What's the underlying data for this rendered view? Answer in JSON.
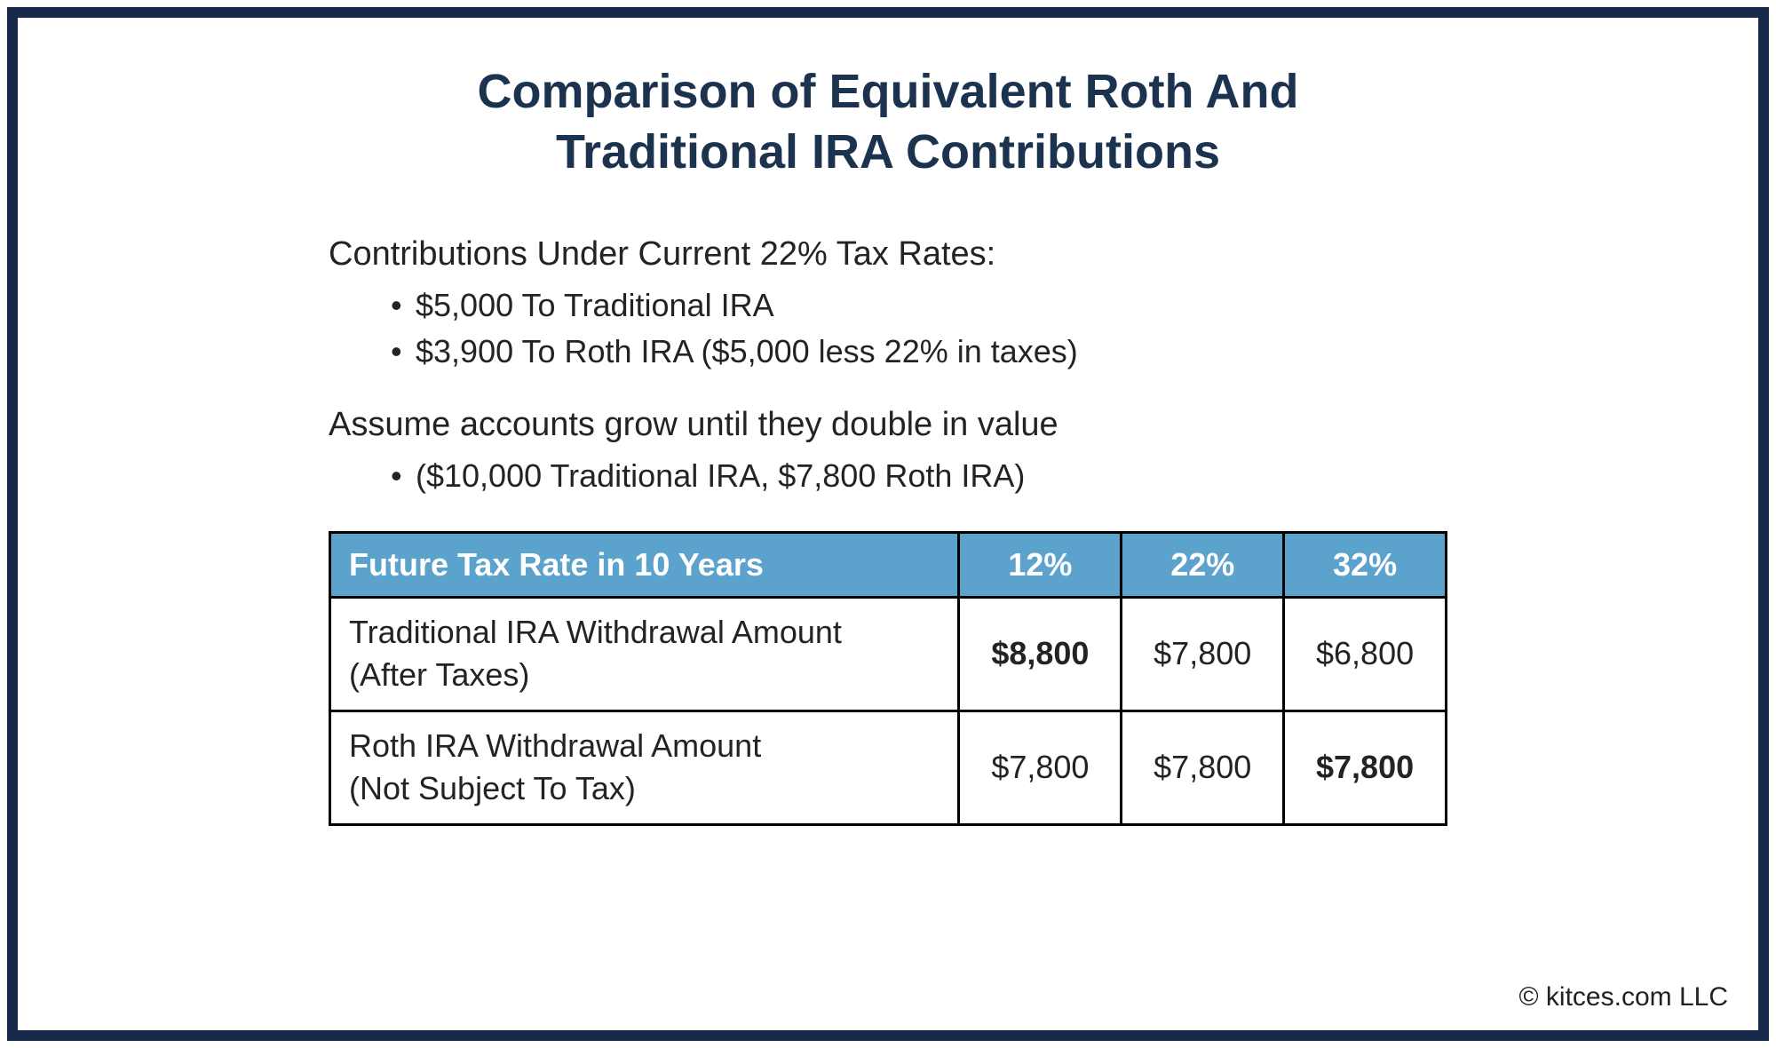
{
  "colors": {
    "frame_border": "#16294a",
    "title_color": "#1c3350",
    "body_text": "#232323",
    "table_border": "#000000",
    "table_header_bg": "#5ba2cd",
    "table_header_text": "#ffffff",
    "highlight_green": "#7ba23f",
    "background": "#ffffff"
  },
  "typography": {
    "title_fontsize": 54,
    "title_weight": 700,
    "heading_fontsize": 38,
    "bullet_fontsize": 36,
    "table_fontsize": 36,
    "copyright_fontsize": 30
  },
  "title": {
    "line1": "Comparison of Equivalent Roth And",
    "line2": "Traditional IRA Contributions"
  },
  "section1": {
    "heading": "Contributions Under Current 22% Tax Rates:",
    "bullets": [
      "$5,000 To Traditional IRA",
      "$3,900 To Roth IRA ($5,000 less 22% in taxes)"
    ]
  },
  "section2": {
    "heading": "Assume accounts grow until they double in value",
    "bullets": [
      "($10,000 Traditional IRA, $7,800 Roth IRA)"
    ]
  },
  "table": {
    "header_label": "Future Tax Rate in 10 Years",
    "columns": [
      "12%",
      "22%",
      "32%"
    ],
    "rows": [
      {
        "label_line1": "Traditional IRA Withdrawal Amount",
        "label_line2": "(After Taxes)",
        "values": [
          "$8,800",
          "$7,800",
          "$6,800"
        ],
        "highlight_index": 0
      },
      {
        "label_line1": "Roth IRA Withdrawal Amount",
        "label_line2": "(Not Subject To Tax)",
        "values": [
          "$7,800",
          "$7,800",
          "$7,800"
        ],
        "highlight_index": 2
      }
    ],
    "column_widths": {
      "label": 710,
      "value": 183
    }
  },
  "copyright": "© kitces.com LLC"
}
